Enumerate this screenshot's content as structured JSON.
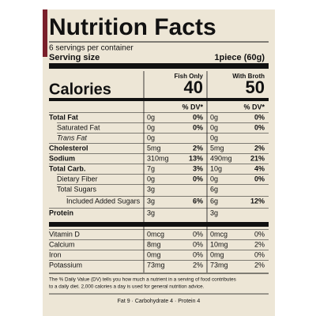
{
  "title": "Nutrition Facts",
  "servings": "6 servings per container",
  "serving_size": {
    "label": "Serving size",
    "value": "1piece (60g)"
  },
  "calories": {
    "label": "Calories",
    "columns": [
      {
        "name": "Fish Only",
        "value": "40"
      },
      {
        "name": "With Broth",
        "value": "50"
      }
    ]
  },
  "dv_header": "% DV*",
  "nutrients": [
    {
      "name": "Total Fat",
      "a1": "0g",
      "d1": "0%",
      "a2": "0g",
      "d2": "0%"
    },
    {
      "name": "Saturated Fat",
      "a1": "0g",
      "d1": "0%",
      "a2": "0g",
      "d2": "0%"
    },
    {
      "name": "Trans Fat",
      "a1": "0g",
      "a2": "0g"
    },
    {
      "name": "Cholesterol",
      "a1": "5mg",
      "d1": "2%",
      "a2": "5mg",
      "d2": "2%"
    },
    {
      "name": "Sodium",
      "a1": "310mg",
      "d1": "13%",
      "a2": "490mg",
      "d2": "21%"
    },
    {
      "name": "Total Carb.",
      "a1": "7g",
      "d1": "3%",
      "a2": "10g",
      "d2": "4%"
    },
    {
      "name": "Dietary Fiber",
      "a1": "0g",
      "d1": "0%",
      "a2": "0g",
      "d2": "0%"
    },
    {
      "name": "Total Sugars",
      "a1": "3g",
      "a2": "6g"
    },
    {
      "name": "Included Added Sugars",
      "a1": "3g",
      "d1": "6%",
      "a2": "6g",
      "d2": "12%"
    },
    {
      "name": "Protein",
      "a1": "3g",
      "a2": "3g"
    }
  ],
  "vitamins": [
    {
      "name": "Vitamin D",
      "a1": "0mcg",
      "d1": "0%",
      "a2": "0mcg",
      "d2": "0%"
    },
    {
      "name": "Calcium",
      "a1": "8mg",
      "d1": "0%",
      "a2": "10mg",
      "d2": "2%"
    },
    {
      "name": "Iron",
      "a1": "0mg",
      "d1": "0%",
      "a2": "0mg",
      "d2": "0%"
    },
    {
      "name": "Potassium",
      "a1": "73mg",
      "d1": "2%",
      "a2": "73mg",
      "d2": "2%"
    }
  ],
  "footnote": [
    "The % Daily Value (DV) tells you how much a nutrient in a serving of food contributes",
    "to a daily diet. 2,000 calories a day is used for general nutrition advice."
  ],
  "calories_per_gram": "Fat 9  ·  Carbohydrate 4  ·  Protein 4"
}
